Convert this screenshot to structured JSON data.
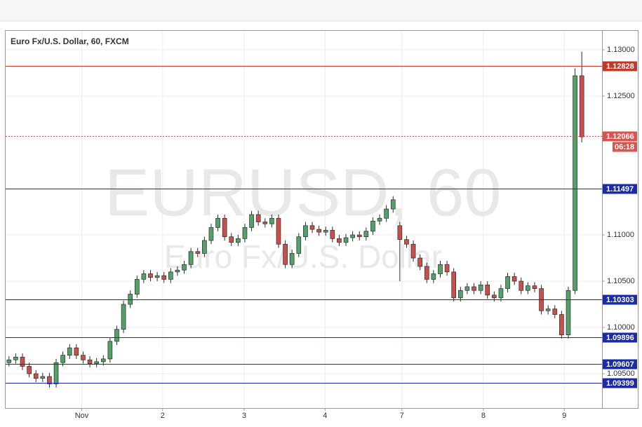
{
  "chart_data": {
    "type": "candlestick",
    "title": "Euro Fx/U.S. Dollar, 60, FXCM",
    "watermark": "EURUSD, 60",
    "watermark_subtitle": "Euro Fx/U.S. Dollar",
    "up_color": "#53a06a",
    "down_color": "#c8504a",
    "outline_color": "#2b2b2b",
    "x": [
      0,
      1,
      2,
      3,
      4,
      5,
      6,
      7,
      8,
      9,
      10,
      11,
      12,
      13,
      14,
      15,
      16,
      17,
      18,
      19,
      20,
      21,
      22,
      23,
      24,
      25,
      26,
      27,
      28,
      29,
      30,
      31,
      32,
      33,
      34,
      35,
      36,
      37,
      38,
      39,
      40,
      41,
      42,
      43,
      44,
      45,
      46,
      47,
      48,
      49,
      50,
      51,
      52,
      53,
      54,
      55,
      56,
      57,
      58,
      59,
      60,
      61,
      62,
      63,
      64,
      65,
      66,
      67,
      68,
      69,
      70,
      71,
      72,
      73,
      74,
      75,
      76,
      77,
      78,
      79,
      80,
      81,
      82,
      83,
      84,
      85
    ],
    "open": [
      1.0962,
      1.0965,
      1.0968,
      1.0958,
      1.095,
      1.0945,
      1.0947,
      1.0939,
      1.0962,
      1.097,
      1.0978,
      1.097,
      1.0965,
      1.0961,
      1.0963,
      1.0966,
      1.0985,
      1.0998,
      1.1025,
      1.1036,
      1.1052,
      1.1058,
      1.1054,
      1.1056,
      1.1052,
      1.106,
      1.1062,
      1.1068,
      1.1082,
      1.108,
      1.1094,
      1.1108,
      1.1118,
      1.1098,
      1.1092,
      1.1096,
      1.1108,
      1.1122,
      1.1114,
      1.1112,
      1.1118,
      1.109,
      1.1068,
      1.108,
      1.1098,
      1.111,
      1.1106,
      1.1103,
      1.1105,
      1.1096,
      1.1092,
      1.1097,
      1.11,
      1.1098,
      1.1104,
      1.1115,
      1.1118,
      1.1128,
      1.111,
      1.1095,
      1.109,
      1.1075,
      1.1066,
      1.1052,
      1.1058,
      1.1068,
      1.106,
      1.1032,
      1.104,
      1.1044,
      1.104,
      1.1046,
      1.1035,
      1.1032,
      1.1042,
      1.1055,
      1.105,
      1.104,
      1.1045,
      1.1042,
      1.1018,
      1.102,
      1.1014,
      1.0992,
      1.104,
      1.1272
    ],
    "high": [
      1.0969,
      1.0972,
      1.0972,
      1.0962,
      1.0954,
      1.0951,
      1.0951,
      1.0966,
      1.0974,
      1.0982,
      1.0982,
      1.0974,
      1.0969,
      1.0967,
      1.097,
      1.0989,
      1.1002,
      1.1029,
      1.104,
      1.1056,
      1.1062,
      1.1062,
      1.106,
      1.106,
      1.1064,
      1.1066,
      1.1072,
      1.1086,
      1.1086,
      1.1098,
      1.1112,
      1.1122,
      1.1122,
      1.1102,
      1.11,
      1.1112,
      1.1126,
      1.1126,
      1.1118,
      1.1122,
      1.1122,
      1.1094,
      1.1084,
      1.1102,
      1.1114,
      1.1114,
      1.111,
      1.1109,
      1.1109,
      1.11,
      1.1101,
      1.1104,
      1.1104,
      1.1108,
      1.1119,
      1.1122,
      1.1132,
      1.1142,
      1.1114,
      1.1099,
      1.1094,
      1.1079,
      1.107,
      1.1062,
      1.1072,
      1.1072,
      1.1064,
      1.1044,
      1.1048,
      1.1048,
      1.105,
      1.105,
      1.1039,
      1.1046,
      1.1059,
      1.1059,
      1.1054,
      1.1049,
      1.1049,
      1.1046,
      1.1024,
      1.1024,
      1.1018,
      1.1044,
      1.128,
      1.1298
    ],
    "low": [
      1.0958,
      1.0961,
      1.0954,
      1.0946,
      1.0941,
      1.0941,
      1.0935,
      1.0935,
      1.0958,
      1.0966,
      1.0966,
      1.0961,
      1.0957,
      1.0957,
      1.0959,
      1.0962,
      1.0981,
      1.0994,
      1.1021,
      1.1032,
      1.1048,
      1.105,
      1.105,
      1.1048,
      1.1048,
      1.1056,
      1.1058,
      1.1064,
      1.1076,
      1.1076,
      1.109,
      1.1104,
      1.1094,
      1.1088,
      1.1088,
      1.1092,
      1.1104,
      1.111,
      1.1108,
      1.1108,
      1.1086,
      1.1064,
      1.1064,
      1.1076,
      1.1094,
      1.1102,
      1.1099,
      1.1099,
      1.1092,
      1.1088,
      1.1088,
      1.1093,
      1.1094,
      1.1094,
      1.11,
      1.1111,
      1.1114,
      1.1124,
      1.105,
      1.1086,
      1.1071,
      1.1062,
      1.1048,
      1.1048,
      1.1054,
      1.1056,
      1.1028,
      1.1028,
      1.1036,
      1.1036,
      1.1036,
      1.1031,
      1.1028,
      1.1028,
      1.1038,
      1.1046,
      1.1036,
      1.1036,
      1.1038,
      1.1014,
      1.1014,
      1.101,
      1.0988,
      1.0988,
      1.1036,
      1.12
    ],
    "close": [
      1.0965,
      1.0968,
      1.0958,
      1.095,
      1.0945,
      1.0947,
      1.0939,
      1.0962,
      1.097,
      1.0978,
      1.097,
      1.0965,
      1.0961,
      1.0963,
      1.0966,
      1.0985,
      1.0998,
      1.1025,
      1.1036,
      1.1052,
      1.1058,
      1.1054,
      1.1056,
      1.1052,
      1.106,
      1.1062,
      1.1068,
      1.1082,
      1.108,
      1.1094,
      1.1108,
      1.1118,
      1.1098,
      1.1092,
      1.1096,
      1.1108,
      1.1122,
      1.1114,
      1.1112,
      1.1118,
      1.109,
      1.1068,
      1.108,
      1.1098,
      1.111,
      1.1106,
      1.1103,
      1.1105,
      1.1096,
      1.1092,
      1.1097,
      1.11,
      1.1098,
      1.1104,
      1.1115,
      1.1118,
      1.1128,
      1.1138,
      1.1095,
      1.109,
      1.1075,
      1.1066,
      1.1052,
      1.1058,
      1.1068,
      1.106,
      1.1032,
      1.104,
      1.1044,
      1.104,
      1.1046,
      1.1035,
      1.1032,
      1.1042,
      1.1055,
      1.105,
      1.104,
      1.1045,
      1.1042,
      1.1018,
      1.102,
      1.1014,
      1.0992,
      1.104,
      1.1272,
      1.1206
    ],
    "xlim": [
      -0.5,
      88
    ],
    "xticks": [
      {
        "value": 10.8,
        "label": "Nov"
      },
      {
        "value": 22.8,
        "label": "2"
      },
      {
        "value": 34.9,
        "label": "3"
      },
      {
        "value": 46.9,
        "label": "4"
      },
      {
        "value": 58.3,
        "label": "7"
      },
      {
        "value": 70.4,
        "label": "8"
      },
      {
        "value": 82.4,
        "label": "9"
      }
    ],
    "ylim": [
      1.09129,
      1.13205
    ],
    "yticks": [
      {
        "value": 1.13,
        "label": "1.13000"
      },
      {
        "value": 1.125,
        "label": "1.12500"
      },
      {
        "value": 1.11,
        "label": "1.11000"
      },
      {
        "value": 1.105,
        "label": "1.10500"
      },
      {
        "value": 1.1,
        "label": "1.10000"
      },
      {
        "value": 1.095,
        "label": "1.09500"
      }
    ],
    "grid": true,
    "levels": [
      {
        "value": 1.12828,
        "color": "#c0392b",
        "style": "solid"
      },
      {
        "value": 1.12066,
        "color": "#d9534f",
        "style": "dotted"
      },
      {
        "value": 1.11497,
        "color": "#1a2aa8",
        "style": "solid"
      },
      {
        "value": 1.10303,
        "color": "#1a2aa8",
        "style": "solid"
      },
      {
        "value": 1.09896,
        "color": "#1a2aa8",
        "style": "solid"
      },
      {
        "value": 1.09607,
        "color": "#1a2aa8",
        "style": "solid"
      },
      {
        "value": 1.09399,
        "color": "#1a2aa8",
        "style": "solid"
      }
    ],
    "countdown": "06:18"
  }
}
